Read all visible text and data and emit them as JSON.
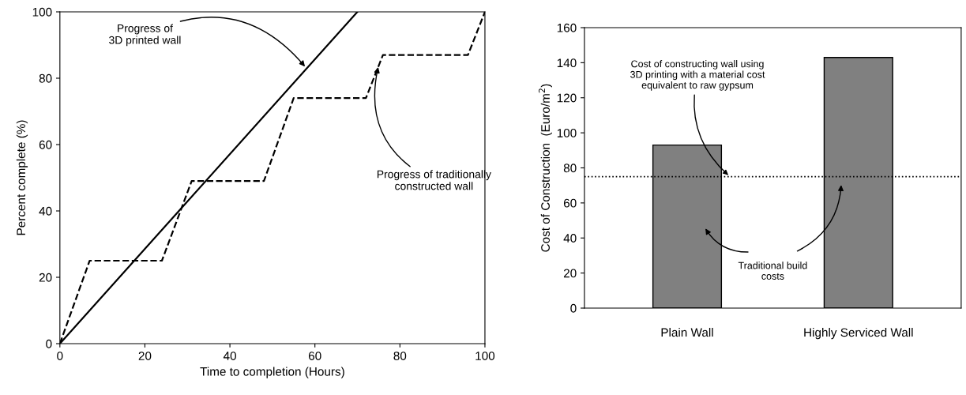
{
  "chart_data": [
    {
      "type": "line",
      "xlabel": "Time to completion (Hours)",
      "ylabel": "Percent complete (%)",
      "xlim": [
        0,
        100
      ],
      "ylim": [
        0,
        100
      ],
      "xticks": [
        0,
        20,
        40,
        60,
        80,
        100
      ],
      "yticks": [
        0,
        20,
        40,
        60,
        80,
        100
      ],
      "grid": false,
      "legend": false,
      "series": [
        {
          "color": "#000000",
          "line_style": "solid",
          "x": [
            0,
            70
          ],
          "values": [
            0,
            100
          ]
        },
        {
          "color": "#000000",
          "line_style": "dashed",
          "x": [
            0,
            7,
            24,
            31,
            48,
            55,
            72,
            76,
            96,
            100
          ],
          "values": [
            0,
            25,
            25,
            49,
            49,
            74,
            74,
            87,
            87,
            100
          ]
        }
      ],
      "annotations": [
        {
          "text": "Progress of\n3D printed wall",
          "x": 58,
          "y": 83
        },
        {
          "text": "Progress of traditionally\nconstructed wall",
          "x": 75,
          "y": 84
        }
      ]
    },
    {
      "type": "bar",
      "ylabel": "Cost of Construction  (Euro/m$^{2}$)",
      "categories": [
        "Plain Wall",
        "Highly Serviced Wall"
      ],
      "values": [
        93,
        143
      ],
      "color": "#808080",
      "ylim": [
        0,
        160
      ],
      "yticks": [
        0,
        20,
        40,
        60,
        80,
        100,
        120,
        140,
        160
      ],
      "grid": false,
      "legend": false,
      "ref_lines": [
        {
          "axis": "y",
          "value": 75,
          "label": "Cost of constructing wall using\n3D printing with a material cost\nequivalent to raw gypsum",
          "line_style": "dotted",
          "color": "#000000"
        }
      ],
      "annotations": [
        "Traditional build\ncosts"
      ]
    }
  ]
}
